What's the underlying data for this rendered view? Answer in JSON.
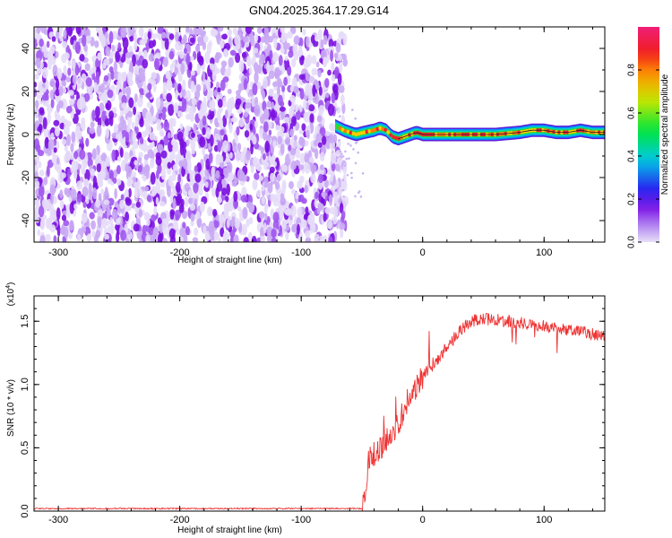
{
  "title": "GN04.2025.364.17.29.G14",
  "chart_data": [
    {
      "type": "heatmap",
      "name": "spectrogram",
      "xlabel": "Height of straight line (km)",
      "ylabel": "Frequency (Hz)",
      "xlim": [
        -320,
        150
      ],
      "ylim": [
        -50,
        50
      ],
      "xticks": [
        -300,
        -200,
        -100,
        0,
        100
      ],
      "yticks": [
        -40,
        -20,
        0,
        20,
        40
      ],
      "xtick_labels": [
        "-300",
        "-200",
        "-100",
        "0",
        "100"
      ],
      "ytick_labels": [
        "-40",
        "-20",
        "0",
        "20",
        "40"
      ],
      "noise_region_x": [
        -320,
        -68
      ],
      "signal_region_x": [
        -72,
        150
      ],
      "signal_ridge": {
        "x": [
          -72,
          -65,
          -55,
          -48,
          -40,
          -35,
          -30,
          -25,
          -20,
          -15,
          -10,
          -5,
          0,
          20,
          40,
          60,
          80,
          90,
          100,
          110,
          120,
          130,
          140,
          150
        ],
        "freq": [
          4,
          2,
          0,
          1,
          2,
          3,
          2,
          -1,
          -2,
          -1,
          0,
          1,
          0,
          0,
          0,
          0,
          1,
          2,
          2,
          1,
          1,
          2,
          1,
          1
        ]
      },
      "colorbar": {
        "label": "Normalized spectral amplitude",
        "range": [
          0,
          1
        ],
        "ticks": [
          0.0,
          0.2,
          0.4,
          0.6,
          0.8
        ],
        "tick_labels": [
          "0.0",
          "0.2",
          "0.4",
          "0.6",
          "0.8"
        ]
      }
    },
    {
      "type": "line",
      "name": "snr",
      "xlabel": "Height of straight line (km)",
      "ylabel": "SNR (10 * v/v)",
      "scale_label": "(x10",
      "scale_exponent": "4",
      "scale_close": ")",
      "xlim": [
        -320,
        150
      ],
      "ylim": [
        0,
        1.7
      ],
      "xticks": [
        -300,
        -200,
        -100,
        0,
        100
      ],
      "yticks": [
        0.0,
        0.5,
        1.0,
        1.5
      ],
      "xtick_labels": [
        "-300",
        "-200",
        "-100",
        "0",
        "100"
      ],
      "ytick_labels": [
        "0.0",
        "0.5",
        "1.0",
        "1.5"
      ],
      "line_color": "#ee3333",
      "series_trend": {
        "x": [
          -320,
          -50,
          -48,
          -45,
          -40,
          -35,
          -30,
          -25,
          -20,
          -15,
          -10,
          0,
          10,
          20,
          30,
          40,
          50,
          60,
          70,
          80,
          90,
          100,
          110,
          120,
          130,
          140,
          150
        ],
        "y": [
          0.02,
          0.02,
          0.05,
          0.4,
          0.45,
          0.5,
          0.55,
          0.62,
          0.7,
          0.8,
          0.92,
          1.05,
          1.18,
          1.3,
          1.42,
          1.5,
          1.52,
          1.51,
          1.5,
          1.49,
          1.48,
          1.46,
          1.45,
          1.43,
          1.42,
          1.4,
          1.38
        ]
      }
    }
  ]
}
